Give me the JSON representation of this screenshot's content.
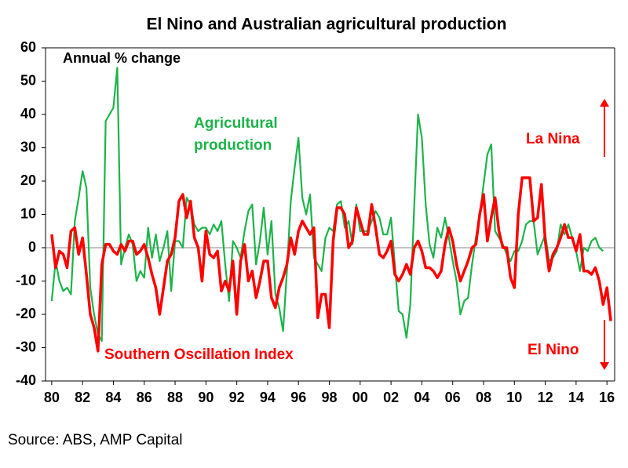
{
  "chart_data": {
    "type": "line",
    "title": "El Nino and Australian agricultural production",
    "source": "Source: ABS, AMP Capital",
    "annotations": [
      "Annual % change",
      "La Nina",
      "El Nino"
    ],
    "x": [
      1980,
      1980.25,
      1980.5,
      1980.75,
      1981,
      1981.25,
      1981.5,
      1981.75,
      1982,
      1982.25,
      1982.5,
      1982.75,
      1983,
      1983.25,
      1983.5,
      1983.75,
      1984,
      1984.25,
      1984.5,
      1984.75,
      1985,
      1985.25,
      1985.5,
      1985.75,
      1986,
      1986.25,
      1986.5,
      1986.75,
      1987,
      1987.25,
      1987.5,
      1987.75,
      1988,
      1988.25,
      1988.5,
      1988.75,
      1989,
      1989.25,
      1989.5,
      1989.75,
      1990,
      1990.25,
      1990.5,
      1990.75,
      1991,
      1991.25,
      1991.5,
      1991.75,
      1992,
      1992.25,
      1992.5,
      1992.75,
      1993,
      1993.25,
      1993.5,
      1993.75,
      1994,
      1994.25,
      1994.5,
      1994.75,
      1995,
      1995.25,
      1995.5,
      1995.75,
      1996,
      1996.25,
      1996.5,
      1996.75,
      1997,
      1997.25,
      1997.5,
      1997.75,
      1998,
      1998.25,
      1998.5,
      1998.75,
      1999,
      1999.25,
      1999.5,
      1999.75,
      2000,
      2000.25,
      2000.5,
      2000.75,
      2001,
      2001.25,
      2001.5,
      2001.75,
      2002,
      2002.25,
      2002.5,
      2002.75,
      2003,
      2003.25,
      2003.5,
      2003.75,
      2004,
      2004.25,
      2004.5,
      2004.75,
      2005,
      2005.25,
      2005.5,
      2005.75,
      2006,
      2006.25,
      2006.5,
      2006.75,
      2007,
      2007.25,
      2007.5,
      2007.75,
      2008,
      2008.25,
      2008.5,
      2008.75,
      2009,
      2009.25,
      2009.5,
      2009.75,
      2010,
      2010.25,
      2010.5,
      2010.75,
      2011,
      2011.25,
      2011.5,
      2011.75,
      2012,
      2012.25,
      2012.5,
      2012.75,
      2013,
      2013.25,
      2013.5,
      2013.75,
      2014,
      2014.25,
      2014.5,
      2014.75,
      2015,
      2015.25,
      2015.5,
      2015.75,
      2016,
      2016.25
    ],
    "series": [
      {
        "name": "Agricultural production",
        "color": "#1db34a",
        "values": [
          -16,
          -4,
          -10,
          -13,
          -12,
          -14,
          8,
          15,
          23,
          18,
          -12,
          -20,
          -26,
          -28,
          38,
          40,
          42,
          54,
          -5,
          0,
          4,
          1,
          -10,
          -7,
          -9,
          6,
          -3,
          4,
          -4,
          0,
          5,
          -13,
          2,
          2,
          0,
          15,
          13,
          7,
          5,
          6,
          6,
          4,
          7,
          5,
          8,
          -5,
          -16,
          2,
          0,
          -3,
          5,
          11,
          13,
          -5,
          2,
          12,
          -2,
          8,
          -14,
          -18,
          -25,
          -7,
          14,
          24,
          33,
          15,
          10,
          16,
          -3,
          -5,
          -7,
          3,
          6,
          5,
          13,
          14,
          6,
          8,
          1,
          13,
          5,
          5,
          5,
          8,
          11,
          9,
          4,
          4,
          9,
          -5,
          -19,
          -20,
          -27,
          -17,
          12,
          40,
          33,
          13,
          1,
          -3,
          6,
          3,
          9,
          3,
          -4,
          -10,
          -20,
          -16,
          -15,
          -5,
          3,
          10,
          19,
          28,
          31,
          5,
          3,
          1,
          -2,
          -4,
          -1,
          -1,
          2,
          7,
          8,
          8,
          -2,
          1,
          4,
          -4,
          -3,
          -1,
          7,
          4,
          7,
          3,
          -1,
          -7,
          0,
          -1,
          2,
          3,
          0,
          -1,
          null,
          null
        ]
      },
      {
        "name": "Southern Oscillation Index",
        "color": "#ff0000",
        "values": [
          4,
          -6,
          -1,
          -2,
          -6,
          5,
          6,
          -2,
          3,
          -8,
          -20,
          -24,
          -31,
          -5,
          1,
          1,
          -1,
          -2,
          1,
          -1,
          2,
          2,
          -2,
          -1,
          1,
          -3,
          -8,
          -12,
          -20,
          -12,
          -4,
          -2,
          3,
          14,
          16,
          9,
          14,
          3,
          0,
          -10,
          5,
          -2,
          -3,
          -1,
          -13,
          -10,
          -13,
          -4,
          -20,
          -4,
          1,
          -10,
          -7,
          -15,
          -10,
          -4,
          -4,
          -15,
          -18,
          -12,
          -9,
          -5,
          3,
          -2,
          5,
          8,
          6,
          4,
          6,
          -21,
          -14,
          -14,
          -24,
          2,
          12,
          12,
          10,
          0,
          2,
          12,
          8,
          4,
          4,
          13,
          6,
          -2,
          -3,
          -1,
          2,
          -8,
          -10,
          -8,
          -5,
          -8,
          0,
          2,
          -1,
          -6,
          -6,
          -7,
          -9,
          -7,
          1,
          6,
          2,
          -5,
          -10,
          -7,
          -4,
          0,
          1,
          10,
          16,
          2,
          9,
          15,
          5,
          0,
          0,
          -9,
          -12,
          10,
          21,
          21,
          21,
          8,
          9,
          19,
          2,
          -7,
          -2,
          0,
          3,
          7,
          3,
          3,
          -1,
          4,
          -7,
          -7,
          -8,
          -6,
          -10,
          -17,
          -12,
          -22
        ]
      }
    ],
    "xlim": [
      1979.6,
      2016.5
    ],
    "xticks": [
      {
        "value": 1980,
        "label": "80"
      },
      {
        "value": 1982,
        "label": "82"
      },
      {
        "value": 1984,
        "label": "84"
      },
      {
        "value": 1986,
        "label": "86"
      },
      {
        "value": 1988,
        "label": "88"
      },
      {
        "value": 1990,
        "label": "90"
      },
      {
        "value": 1992,
        "label": "92"
      },
      {
        "value": 1994,
        "label": "94"
      },
      {
        "value": 1996,
        "label": "96"
      },
      {
        "value": 1998,
        "label": "98"
      },
      {
        "value": 2000,
        "label": "00"
      },
      {
        "value": 2002,
        "label": "02"
      },
      {
        "value": 2004,
        "label": "04"
      },
      {
        "value": 2006,
        "label": "06"
      },
      {
        "value": 2008,
        "label": "08"
      },
      {
        "value": 2010,
        "label": "10"
      },
      {
        "value": 2012,
        "label": "12"
      },
      {
        "value": 2014,
        "label": "14"
      },
      {
        "value": 2016,
        "label": "16"
      }
    ],
    "ylim": [
      -40,
      60
    ],
    "yticks": [
      -40,
      -30,
      -20,
      -10,
      0,
      10,
      20,
      30,
      40,
      50,
      60
    ],
    "grid": false
  }
}
